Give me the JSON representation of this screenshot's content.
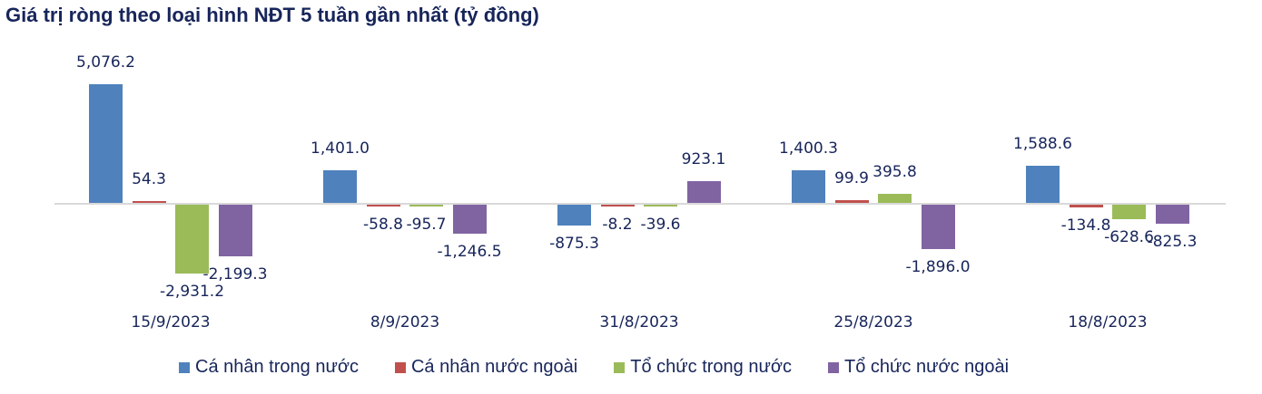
{
  "title": "Giá trị ròng theo loại hình NĐT 5 tuần gần nhất (tỷ đồng)",
  "chart_data": {
    "type": "bar",
    "title": "Giá trị ròng theo loại hình NĐT 5 tuần gần nhất (tỷ đồng)",
    "xlabel": "",
    "ylabel": "",
    "categories": [
      "15/9/2023",
      "8/9/2023",
      "31/8/2023",
      "25/8/2023",
      "18/8/2023"
    ],
    "series": [
      {
        "name": "Cá nhân trong nước",
        "color": "#4f81bd",
        "values": [
          5076.2,
          1401.0,
          -875.3,
          1400.3,
          1588.6
        ],
        "labels": [
          "5,076.2",
          "1,401.0",
          "-875.3",
          "1,400.3",
          "1,588.6"
        ]
      },
      {
        "name": "Cá nhân nước ngoài",
        "color": "#c0504d",
        "values": [
          54.3,
          -58.8,
          -8.2,
          99.9,
          -134.8
        ],
        "labels": [
          "54.3",
          "-58.8",
          "-8.2",
          "99.9",
          "-134.8"
        ]
      },
      {
        "name": "Tổ chức trong nước",
        "color": "#9bbb59",
        "values": [
          -2931.2,
          -95.7,
          -39.6,
          395.8,
          -628.6
        ],
        "labels": [
          "-2,931.2",
          "-95.7",
          "-39.6",
          "395.8",
          "-628.6"
        ]
      },
      {
        "name": "Tổ chức nước ngoài",
        "color": "#8064a2",
        "values": [
          -2199.3,
          -1246.5,
          923.1,
          -1896.0,
          -825.3
        ],
        "labels": [
          "-2,199.3",
          "-1,246.5",
          "923.1",
          "-1,896.0",
          "-825.3"
        ]
      }
    ],
    "grid": false,
    "legend_position": "bottom",
    "data_labels": true
  },
  "legend": [
    {
      "label": "Cá nhân trong nước",
      "color": "#4f81bd"
    },
    {
      "label": "Cá nhân nước ngoài",
      "color": "#c0504d"
    },
    {
      "label": "Tổ chức trong nước",
      "color": "#9bbb59"
    },
    {
      "label": "Tổ chức nước ngoài",
      "color": "#8064a2"
    }
  ]
}
